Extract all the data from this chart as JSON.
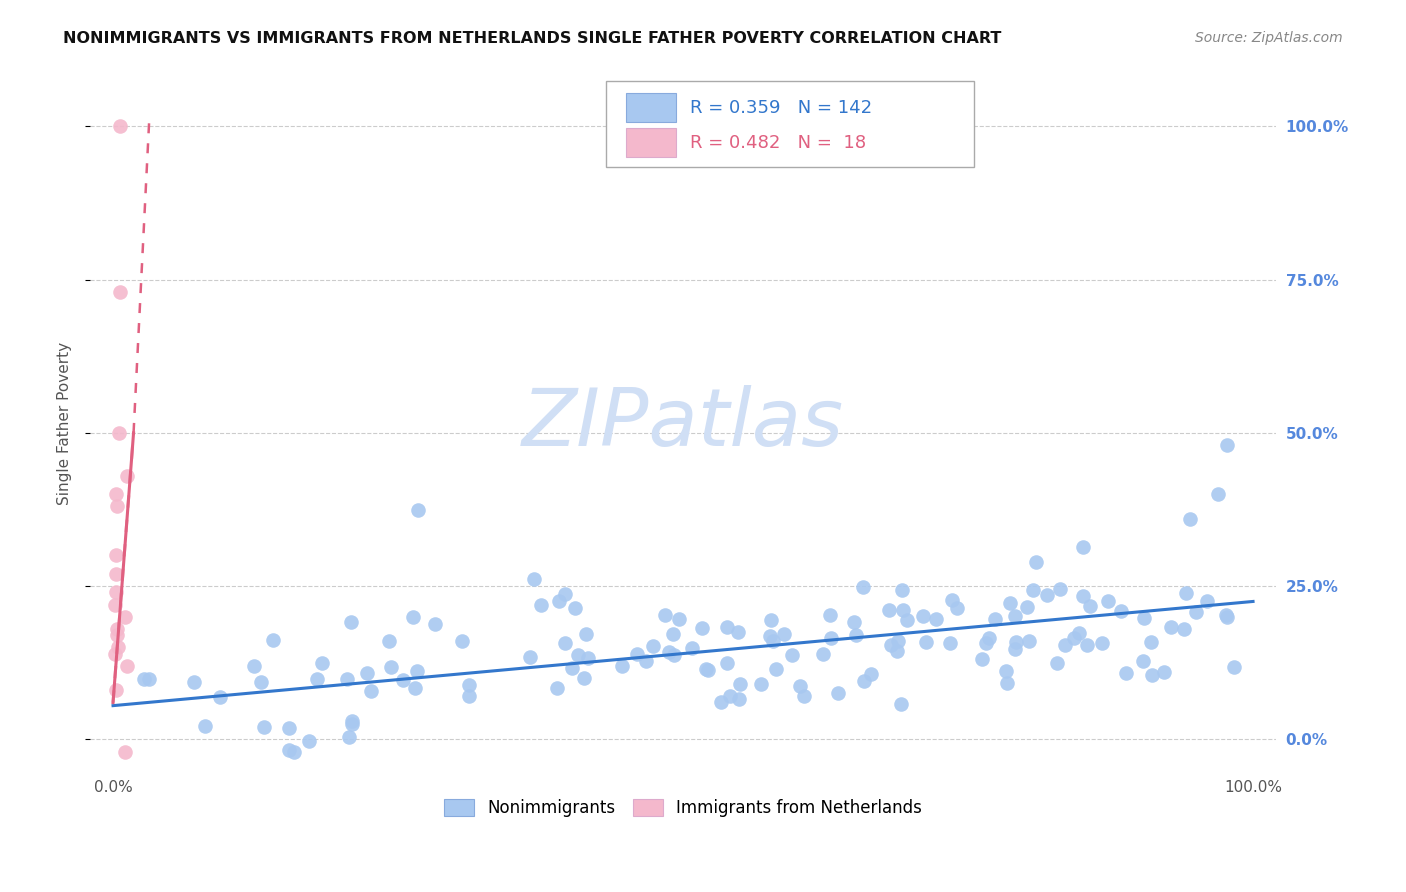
{
  "title": "NONIMMIGRANTS VS IMMIGRANTS FROM NETHERLANDS SINGLE FATHER POVERTY CORRELATION CHART",
  "source": "Source: ZipAtlas.com",
  "ylabel": "Single Father Poverty",
  "xlim": [
    -0.02,
    1.02
  ],
  "ylim": [
    -0.05,
    1.08
  ],
  "xtick_vals": [
    0.0,
    1.0
  ],
  "xtick_labels": [
    "0.0%",
    "100.0%"
  ],
  "ytick_positions": [
    0.0,
    0.25,
    0.5,
    0.75,
    1.0
  ],
  "ytick_labels": [
    "0.0%",
    "25.0%",
    "50.0%",
    "75.0%",
    "100.0%"
  ],
  "legend_labels": [
    "Nonimmigrants",
    "Immigrants from Netherlands"
  ],
  "nonimm_color": "#a8c8f0",
  "imm_color": "#f4b8cc",
  "nonimm_R": 0.359,
  "nonimm_N": 142,
  "imm_R": 0.482,
  "imm_N": 18,
  "nonimm_line_color": "#3377cc",
  "imm_line_color": "#e06080",
  "watermark_color": "#d0dff5",
  "grid_color": "#cccccc",
  "title_color": "#111111",
  "right_tick_color": "#5588dd",
  "nonimm_trendline_x": [
    0.0,
    1.0
  ],
  "nonimm_trendline_y": [
    0.055,
    0.225
  ],
  "imm_trendline_x": [
    0.0,
    0.035
  ],
  "imm_trendline_y": [
    0.06,
    1.0
  ]
}
